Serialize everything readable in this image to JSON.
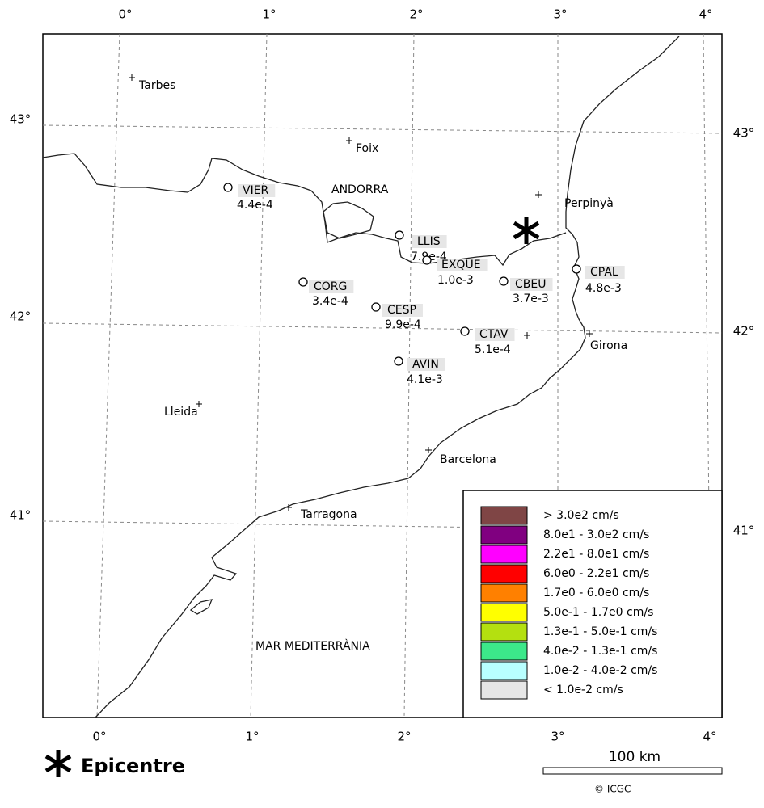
{
  "axes": {
    "top": [
      "0°",
      "1°",
      "2°",
      "3°",
      "4°"
    ],
    "bottom": [
      "0°",
      "1°",
      "2°",
      "3°",
      "4°"
    ],
    "left": [
      "43°",
      "42°",
      "41°"
    ],
    "right": [
      "43°",
      "42°",
      "41°"
    ]
  },
  "places": [
    "Tarbes",
    "Foix",
    "ANDORRA",
    "Perpinyà",
    "Girona",
    "Lleida",
    "Barcelona",
    "Tarragona"
  ],
  "sea": "MAR MEDITERRÀNIA",
  "stations": [
    {
      "code": "VIER",
      "value": "4.4e-4"
    },
    {
      "code": "LLIS",
      "value": "7.9e-4"
    },
    {
      "code": "EXQUE",
      "value": "1.0e-3"
    },
    {
      "code": "CORG",
      "value": "3.4e-4"
    },
    {
      "code": "CESP",
      "value": "9.9e-4"
    },
    {
      "code": "CBEU",
      "value": "3.7e-3"
    },
    {
      "code": "CPAL",
      "value": "4.8e-3"
    },
    {
      "code": "CTAV",
      "value": "5.1e-4"
    },
    {
      "code": "AVIN",
      "value": "4.1e-3"
    }
  ],
  "legend": [
    {
      "color": "#7f4545",
      "label": "> 3.0e2 cm/s"
    },
    {
      "color": "#800080",
      "label": "8.0e1 - 3.0e2 cm/s"
    },
    {
      "color": "#ff00ff",
      "label": "2.2e1 - 8.0e1 cm/s"
    },
    {
      "color": "#ff0000",
      "label": "6.0e0 - 2.2e1 cm/s"
    },
    {
      "color": "#ff8000",
      "label": "1.7e0 - 6.0e0 cm/s"
    },
    {
      "color": "#ffff00",
      "label": "5.0e-1 - 1.7e0 cm/s"
    },
    {
      "color": "#b4e010",
      "label": "1.3e-1 - 5.0e-1 cm/s"
    },
    {
      "color": "#3ce88a",
      "label": "4.0e-2 - 1.3e-1 cm/s"
    },
    {
      "color": "#b8ffff",
      "label": "1.0e-2 - 4.0e-2 cm/s"
    },
    {
      "color": "#e6e6e6",
      "label": "< 1.0e-2 cm/s"
    }
  ],
  "epicentre": "Epicentre",
  "scale": "100 km",
  "credit": "© ICGC"
}
